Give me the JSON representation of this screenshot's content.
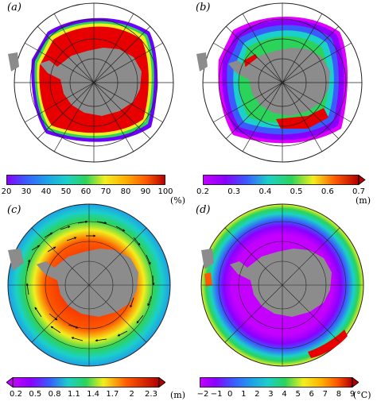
{
  "panels": [
    {
      "label": "(a)",
      "unit": "(%)",
      "ticks": [
        "20",
        "30",
        "40",
        "50",
        "60",
        "70",
        "80",
        "90",
        "100"
      ],
      "arrow_end": false
    },
    {
      "label": "(b)",
      "unit": "(m)",
      "ticks": [
        "0.2",
        "0.3",
        "0.4",
        "0.5",
        "0.6",
        "0.7"
      ],
      "arrow_end": true
    },
    {
      "label": "(c)",
      "unit": "(m)",
      "ticks": [
        "0.2",
        "0.5",
        "0.8",
        "1.1",
        "1.4",
        "1.7",
        "2",
        "2.3"
      ],
      "arrow_end": true
    },
    {
      "label": "(d)",
      "unit": "(°C)",
      "ticks": [
        "−2",
        "−1",
        "0",
        "1",
        "2",
        "3",
        "4",
        "5",
        "6",
        "7",
        "8",
        "9"
      ],
      "arrow_end": true
    }
  ],
  "colors": {
    "land": "#8c8c8c",
    "grid": "#222222",
    "palette": [
      "#8a00ff",
      "#c400ff",
      "#3a5bff",
      "#1ea0e8",
      "#1bd0c8",
      "#2cd35a",
      "#9be22a",
      "#f2ef1e",
      "#ffb000",
      "#ff5a00",
      "#e80000",
      "#b40000"
    ]
  }
}
